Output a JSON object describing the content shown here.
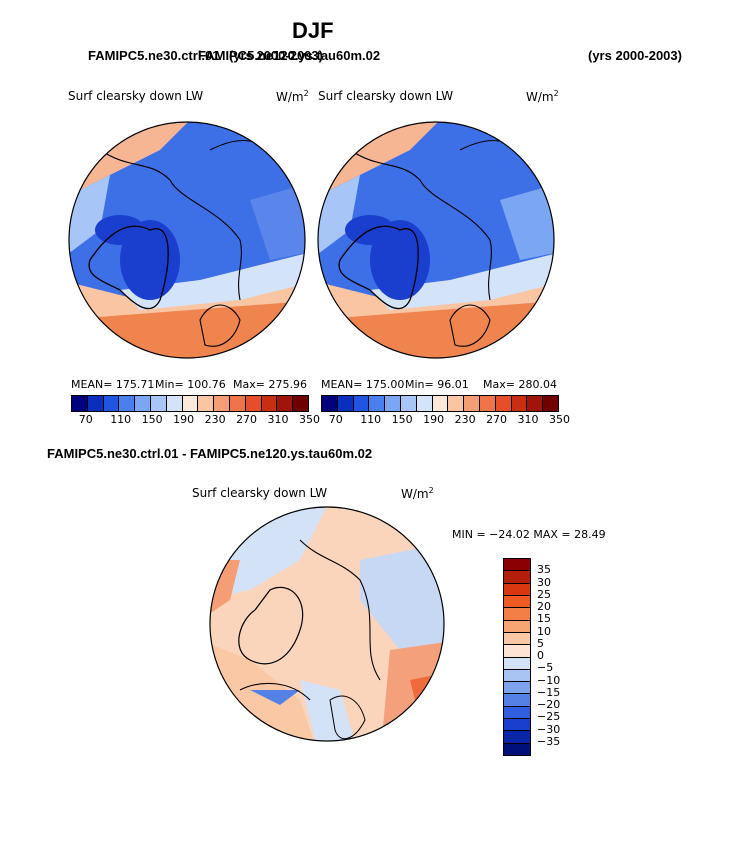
{
  "figure": {
    "title": "DJF",
    "header_left_case_1": "FAMIPC5.ne30.ctrl.01",
    "header_left_years": "(yrs 2000-2003)",
    "header_left_case_2": "FAMIPC5.ne120.ys.tau60m.02",
    "header_right_years": "(yrs 2000-2003)"
  },
  "panels": [
    {
      "variable": "Surf clearsky down LW",
      "units": "W/m",
      "units_exp": "2",
      "mean_text": "MEAN= 175.71",
      "min_text": "Min= 100.76",
      "max_text": "Max= 275.96"
    },
    {
      "variable": "Surf clearsky down LW",
      "units": "W/m",
      "units_exp": "2",
      "mean_text": "MEAN= 175.00",
      "min_text": "Min=  96.01",
      "max_text": "Max= 280.04"
    }
  ],
  "abs_colorbar": {
    "colors": [
      "#00007f",
      "#0a2fbf",
      "#1f55e0",
      "#4a7fee",
      "#7aa6f4",
      "#a7c5f7",
      "#d3e3fa",
      "#fde9d9",
      "#f9c5a3",
      "#f59d74",
      "#ef744a",
      "#e64d2a",
      "#c82e12",
      "#a0150a",
      "#700000"
    ],
    "labels": [
      "70",
      "110",
      "150",
      "190",
      "230",
      "270",
      "310",
      "350"
    ]
  },
  "diff_panel": {
    "title": "FAMIPC5.ne30.ctrl.01 - FAMIPC5.ne120.ys.tau60m.02",
    "variable": "Surf clearsky down LW",
    "units": "W/m",
    "units_exp": "2",
    "minmax_text": "MIN = −24.02 MAX =  28.49"
  },
  "diff_colorbar": {
    "colors": [
      "#8b0000",
      "#b51e0a",
      "#d8370f",
      "#ef5a22",
      "#f47f46",
      "#f8a574",
      "#fbc8a6",
      "#fde4d2",
      "#d4e2f7",
      "#a9c3f2",
      "#7ea3ec",
      "#5581e6",
      "#2f5ede",
      "#1a3fcf",
      "#0b25a8",
      "#00107a"
    ],
    "labels": [
      "35",
      "30",
      "25",
      "20",
      "15",
      "10",
      "5",
      "0",
      "−5",
      "−10",
      "−15",
      "−20",
      "−25",
      "−30",
      "−35"
    ]
  }
}
